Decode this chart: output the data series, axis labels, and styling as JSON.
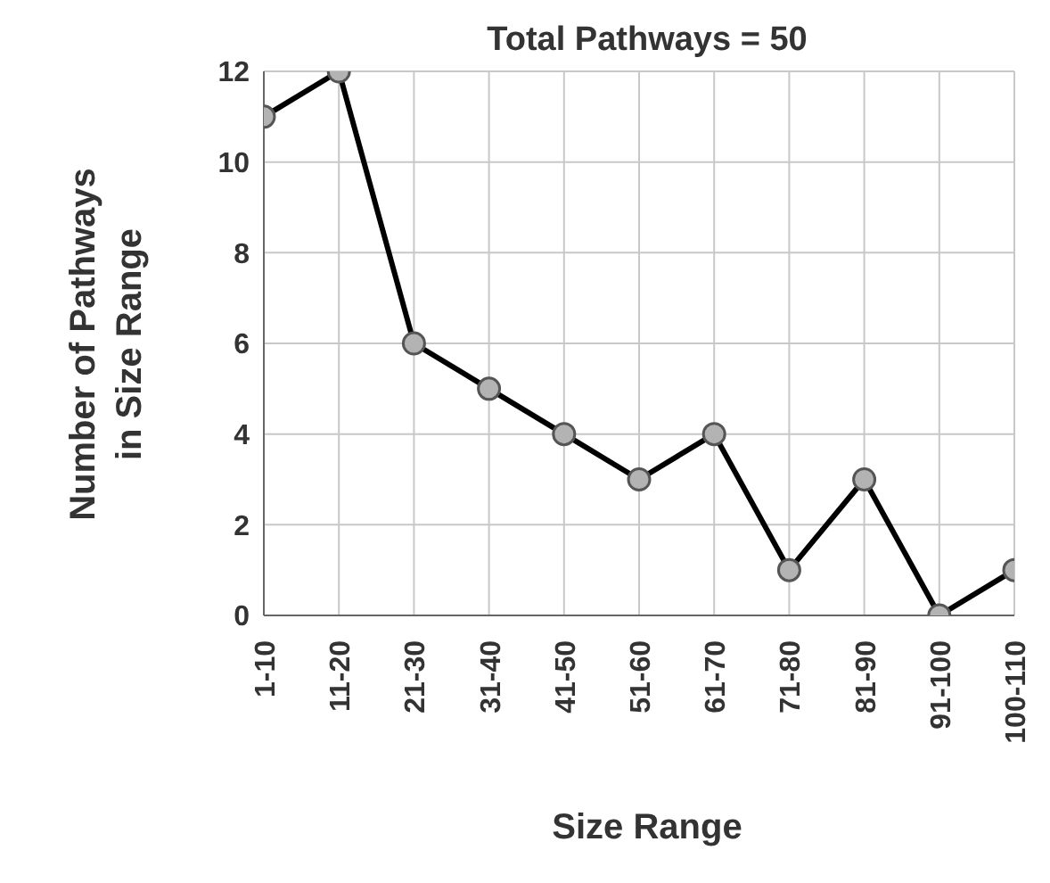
{
  "chart_data": {
    "type": "line",
    "title": "Total Pathways = 50",
    "xlabel": "Size Range",
    "ylabel": "Number of Pathways\nin Size Range",
    "categories": [
      "1-10",
      "11-20",
      "21-30",
      "31-40",
      "41-50",
      "51-60",
      "61-70",
      "71-80",
      "81-90",
      "91-100",
      "100-110"
    ],
    "series": [
      {
        "color": "#000000",
        "values": [
          11,
          12,
          6,
          5,
          4,
          3,
          4,
          1,
          3,
          0,
          1
        ]
      }
    ],
    "ylim": [
      0,
      12
    ],
    "yticks": [
      0,
      2,
      4,
      6,
      8,
      10,
      12
    ],
    "grid": true,
    "marker": "circle",
    "line_style": "solid",
    "legend": false
  }
}
